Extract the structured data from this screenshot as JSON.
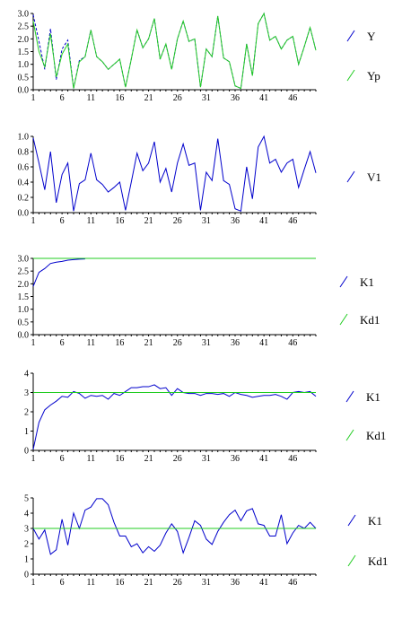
{
  "chart_data": [
    {
      "type": "line",
      "x": [
        1,
        2,
        3,
        4,
        5,
        6,
        7,
        8,
        9,
        10,
        11,
        12,
        13,
        14,
        15,
        16,
        17,
        18,
        19,
        20,
        21,
        22,
        23,
        24,
        25,
        26,
        27,
        28,
        29,
        30,
        31,
        32,
        33,
        34,
        35,
        36,
        37,
        38,
        39,
        40,
        41,
        42,
        43,
        44,
        45,
        46,
        47,
        48,
        49,
        50
      ],
      "xticks": [
        "1",
        "6",
        "11",
        "16",
        "21",
        "26",
        "31",
        "36",
        "41",
        "46"
      ],
      "ylim": [
        0,
        3
      ],
      "yticks": [
        "0.0",
        "0.5",
        "1.0",
        "1.5",
        "2.0",
        "2.5",
        "3.0"
      ],
      "grid": false,
      "legend_position": "right",
      "series": [
        {
          "name": "Y",
          "color": "#0000cc",
          "values": [
            2.95,
            1.9,
            0.8,
            2.4,
            0.4,
            1.6,
            1.95,
            0.05,
            1.15,
            1.3,
            2.35,
            1.3,
            1.1,
            0.8,
            1.0,
            1.2,
            0.1,
            1.2,
            2.35,
            1.65,
            2.0,
            2.8,
            1.2,
            1.8,
            0.8,
            2.0,
            2.7,
            1.9,
            2.0,
            0.1,
            1.6,
            1.3,
            2.9,
            1.25,
            1.1,
            0.15,
            0.05,
            1.8,
            0.55,
            2.6,
            3.0,
            1.95,
            2.1,
            1.6,
            1.95,
            2.1,
            1.0,
            1.7,
            2.45,
            1.55
          ]
        },
        {
          "name": "Yp",
          "color": "#22cc22",
          "values": [
            2.7,
            1.5,
            0.9,
            2.2,
            0.5,
            1.4,
            1.8,
            0.05,
            1.1,
            1.3,
            2.35,
            1.3,
            1.1,
            0.8,
            1.0,
            1.2,
            0.1,
            1.2,
            2.35,
            1.65,
            2.0,
            2.8,
            1.2,
            1.8,
            0.8,
            2.0,
            2.7,
            1.9,
            2.0,
            0.1,
            1.6,
            1.3,
            2.9,
            1.25,
            1.1,
            0.15,
            0.05,
            1.8,
            0.55,
            2.6,
            3.0,
            1.95,
            2.1,
            1.6,
            1.95,
            2.1,
            1.0,
            1.7,
            2.45,
            1.55
          ]
        }
      ]
    },
    {
      "type": "line",
      "x": [
        1,
        2,
        3,
        4,
        5,
        6,
        7,
        8,
        9,
        10,
        11,
        12,
        13,
        14,
        15,
        16,
        17,
        18,
        19,
        20,
        21,
        22,
        23,
        24,
        25,
        26,
        27,
        28,
        29,
        30,
        31,
        32,
        33,
        34,
        35,
        36,
        37,
        38,
        39,
        40,
        41,
        42,
        43,
        44,
        45,
        46,
        47,
        48,
        49,
        50
      ],
      "xticks": [
        "1",
        "6",
        "11",
        "16",
        "21",
        "26",
        "31",
        "36",
        "41",
        "46"
      ],
      "ylim": [
        0,
        1
      ],
      "yticks": [
        "0.0",
        "0.2",
        "0.4",
        "0.6",
        "0.8",
        "1.0"
      ],
      "grid": false,
      "legend_position": "right",
      "series": [
        {
          "name": "V1",
          "color": "#0000cc",
          "values": [
            0.98,
            0.65,
            0.3,
            0.8,
            0.13,
            0.5,
            0.65,
            0.02,
            0.38,
            0.43,
            0.78,
            0.43,
            0.37,
            0.27,
            0.33,
            0.4,
            0.03,
            0.4,
            0.78,
            0.55,
            0.65,
            0.93,
            0.4,
            0.58,
            0.27,
            0.65,
            0.9,
            0.62,
            0.65,
            0.03,
            0.53,
            0.42,
            0.97,
            0.42,
            0.37,
            0.05,
            0.02,
            0.6,
            0.18,
            0.86,
            1.0,
            0.65,
            0.7,
            0.53,
            0.65,
            0.7,
            0.33,
            0.57,
            0.8,
            0.52
          ]
        }
      ]
    },
    {
      "type": "line",
      "x": [
        1,
        2,
        3,
        4,
        5,
        6,
        7,
        8,
        9,
        10,
        11,
        12,
        13,
        14,
        15,
        16,
        17,
        18,
        19,
        20,
        21,
        22,
        23,
        24,
        25,
        26,
        27,
        28,
        29,
        30,
        31,
        32,
        33,
        34,
        35,
        36,
        37,
        38,
        39,
        40,
        41,
        42,
        43,
        44,
        45,
        46,
        47,
        48,
        49,
        50
      ],
      "xticks": [
        "1",
        "6",
        "11",
        "16",
        "21",
        "26",
        "31",
        "36",
        "41",
        "46"
      ],
      "ylim": [
        0,
        3
      ],
      "yticks": [
        "0.0",
        "0.5",
        "1.0",
        "1.5",
        "2.0",
        "2.5",
        "3.0"
      ],
      "grid": false,
      "legend_position": "right",
      "series": [
        {
          "name": "K1",
          "color": "#0000cc",
          "x": [
            1,
            2,
            3,
            4,
            5,
            6,
            7,
            8,
            9,
            10
          ],
          "values": [
            1.9,
            2.45,
            2.6,
            2.8,
            2.85,
            2.88,
            2.93,
            2.95,
            2.97,
            2.98
          ]
        },
        {
          "name": "Kd1",
          "color": "#22cc22",
          "x": [
            1,
            50
          ],
          "values": [
            3.0,
            3.0
          ]
        }
      ]
    },
    {
      "type": "line",
      "x": [
        1,
        2,
        3,
        4,
        5,
        6,
        7,
        8,
        9,
        10,
        11,
        12,
        13,
        14,
        15,
        16,
        17,
        18,
        19,
        20,
        21,
        22,
        23,
        24,
        25,
        26,
        27,
        28,
        29,
        30,
        31,
        32,
        33,
        34,
        35,
        36,
        37,
        38,
        39,
        40,
        41,
        42,
        43,
        44,
        45,
        46,
        47,
        48,
        49,
        50
      ],
      "xticks": [
        "1",
        "6",
        "11",
        "16",
        "21",
        "26",
        "31",
        "36",
        "41",
        "46"
      ],
      "ylim": [
        0,
        4
      ],
      "yticks": [
        "0",
        "1",
        "2",
        "3",
        "4"
      ],
      "grid": false,
      "legend_position": "right",
      "series": [
        {
          "name": "K1",
          "color": "#0000cc",
          "values": [
            0.05,
            1.45,
            2.1,
            2.35,
            2.55,
            2.8,
            2.75,
            3.05,
            2.95,
            2.7,
            2.85,
            2.8,
            2.85,
            2.65,
            2.95,
            2.85,
            3.05,
            3.25,
            3.25,
            3.3,
            3.3,
            3.4,
            3.2,
            3.25,
            2.85,
            3.2,
            3.0,
            2.95,
            2.95,
            2.85,
            2.95,
            2.95,
            2.9,
            2.95,
            2.8,
            3.0,
            2.9,
            2.85,
            2.75,
            2.8,
            2.85,
            2.85,
            2.9,
            2.8,
            2.65,
            3.0,
            3.05,
            3.0,
            3.05,
            2.8
          ]
        },
        {
          "name": "Kd1",
          "color": "#22cc22",
          "x": [
            1,
            50
          ],
          "values": [
            3.0,
            3.0
          ]
        }
      ]
    },
    {
      "type": "line",
      "x": [
        1,
        2,
        3,
        4,
        5,
        6,
        7,
        8,
        9,
        10,
        11,
        12,
        13,
        14,
        15,
        16,
        17,
        18,
        19,
        20,
        21,
        22,
        23,
        24,
        25,
        26,
        27,
        28,
        29,
        30,
        31,
        32,
        33,
        34,
        35,
        36,
        37,
        38,
        39,
        40,
        41,
        42,
        43,
        44,
        45,
        46,
        47,
        48,
        49,
        50
      ],
      "xticks": [
        "1",
        "6",
        "11",
        "16",
        "21",
        "26",
        "31",
        "36",
        "41",
        "46"
      ],
      "ylim": [
        0,
        5
      ],
      "yticks": [
        "0",
        "1",
        "2",
        "3",
        "4",
        "5"
      ],
      "grid": false,
      "legend_position": "right",
      "series": [
        {
          "name": "K1",
          "color": "#0000cc",
          "values": [
            3.0,
            2.3,
            2.9,
            1.3,
            1.6,
            3.6,
            1.9,
            4.0,
            3.0,
            4.2,
            4.4,
            4.95,
            4.95,
            4.55,
            3.4,
            2.5,
            2.5,
            1.8,
            2.0,
            1.4,
            1.8,
            1.5,
            1.9,
            2.7,
            3.3,
            2.8,
            1.4,
            2.4,
            3.5,
            3.2,
            2.3,
            1.95,
            2.8,
            3.4,
            3.9,
            4.2,
            3.5,
            4.15,
            4.3,
            3.3,
            3.2,
            2.5,
            2.5,
            3.9,
            2.0,
            2.7,
            3.2,
            3.0,
            3.4,
            3.0
          ]
        },
        {
          "name": "Kd1",
          "color": "#22cc22",
          "x": [
            1,
            50
          ],
          "values": [
            3.0,
            3.0
          ]
        }
      ]
    }
  ]
}
